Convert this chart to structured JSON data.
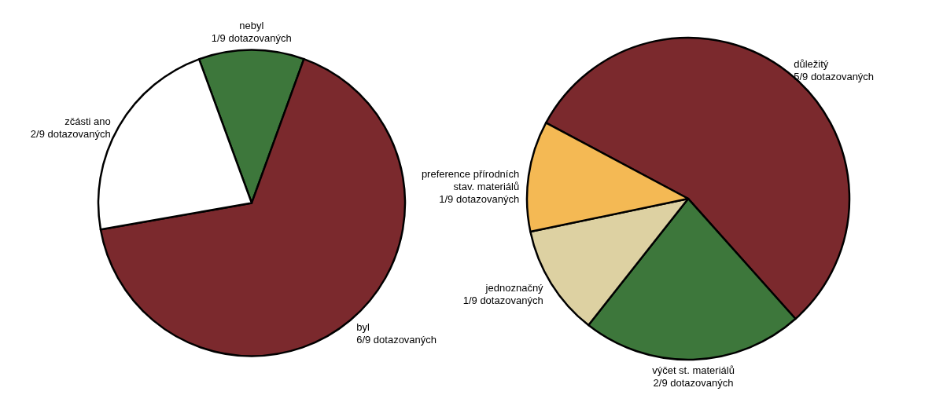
{
  "chart_data": [
    {
      "type": "pie",
      "categories": [
        "nebyl",
        "byl",
        "zčásti ano"
      ],
      "values": [
        11.1,
        66.7,
        22.2
      ],
      "value_labels": [
        "1/9 dotazovaných",
        "6/9 dotazovaných",
        "2/9 dotazovaných"
      ],
      "colors": [
        "#3d773b",
        "#7b292d",
        "#ffffff"
      ]
    },
    {
      "type": "pie",
      "categories": [
        "důležitý",
        "výčet st. materiálů",
        "jednoznačný",
        "preference přírodních stav. materiálů"
      ],
      "values": [
        55.6,
        22.2,
        11.1,
        11.1
      ],
      "value_labels": [
        "5/9 dotazovaných",
        "2/9 dotazovaných",
        "1/9 dotazovaných",
        "1/9 dotazovaných"
      ],
      "colors": [
        "#7b292d",
        "#3d773b",
        "#ddd1a2",
        "#f4b954"
      ]
    }
  ]
}
